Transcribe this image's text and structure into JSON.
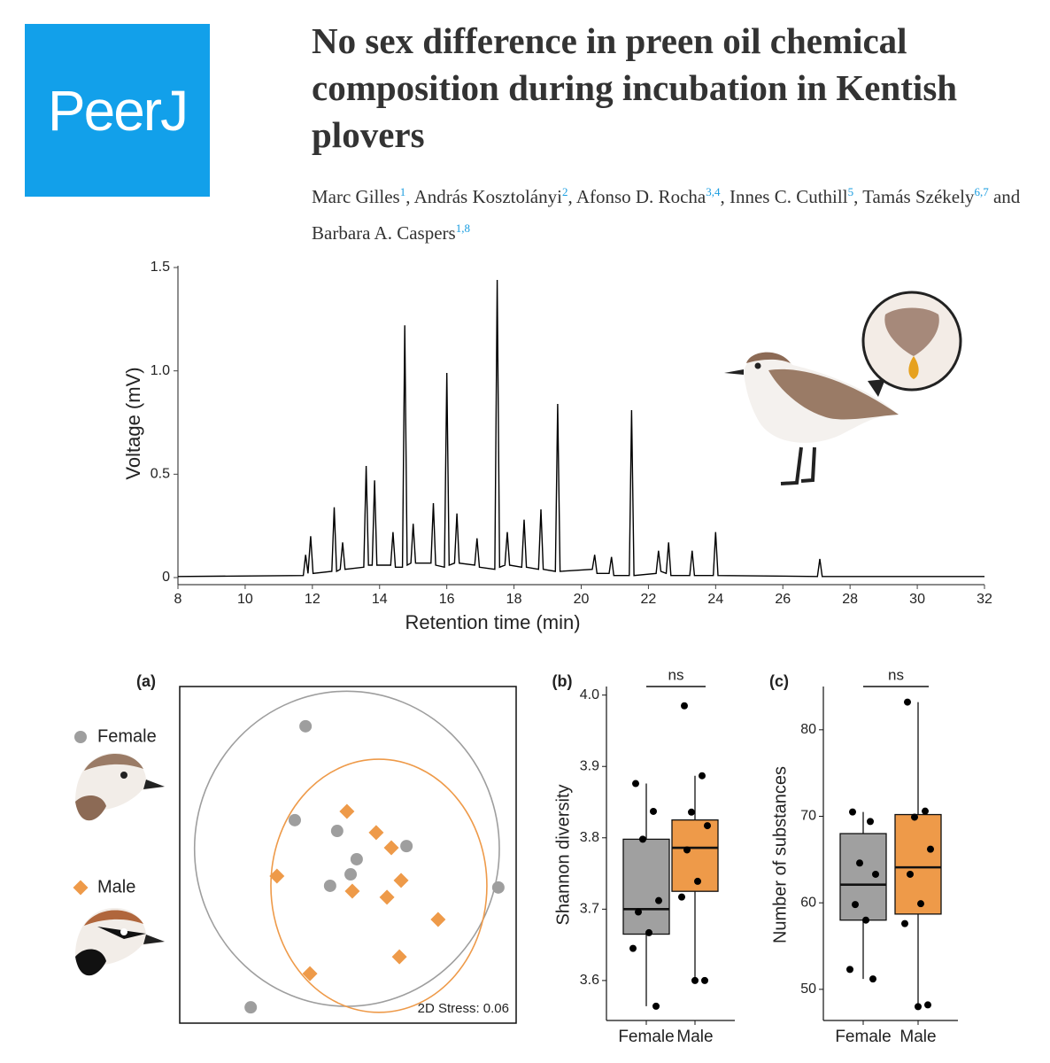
{
  "logo": "PeerJ",
  "title": "No sex difference in preen oil chemical composition during incubation in Kentish plovers",
  "authors": [
    {
      "name": "Marc Gilles",
      "aff": "1"
    },
    {
      "name": "András Kosztolányi",
      "aff": "2"
    },
    {
      "name": "Afonso D. Rocha",
      "aff": "3,4"
    },
    {
      "name": "Innes C. Cuthill",
      "aff": "5"
    },
    {
      "name": "Tamás Székely",
      "aff": "6,7"
    },
    {
      "name": "Barbara A. Caspers",
      "aff": "1,8"
    }
  ],
  "author_separator": ",",
  "author_conjunction": "and",
  "chart_data": [
    {
      "type": "line",
      "xlabel": "Retention time (min)",
      "ylabel": "Voltage (mV)",
      "color": "#000000",
      "xlim": [
        8,
        32
      ],
      "ylim": [
        0,
        1.5
      ],
      "xticks": [
        8,
        10,
        12,
        14,
        16,
        18,
        20,
        22,
        24,
        26,
        28,
        30,
        32
      ],
      "yticks": [
        0,
        0.5,
        {
          "value": 1,
          "label": "1.0"
        },
        {
          "value": 1.5,
          "label": "1.5"
        }
      ],
      "x": [
        8,
        11.73,
        11.8,
        11.87,
        11.95,
        12.02,
        12.58,
        12.65,
        12.72,
        12.83,
        12.9,
        12.97,
        13.53,
        13.6,
        13.67,
        13.78,
        13.85,
        13.92,
        14.33,
        14.4,
        14.47,
        14.68,
        14.75,
        14.82,
        14.93,
        15.0,
        15.07,
        15.53,
        15.6,
        15.67,
        15.93,
        16.0,
        16.07,
        16.23,
        16.3,
        16.37,
        16.83,
        16.9,
        16.97,
        17.43,
        17.5,
        17.57,
        17.73,
        17.8,
        17.87,
        18.23,
        18.3,
        18.37,
        18.73,
        18.8,
        18.87,
        19.23,
        19.3,
        19.37,
        20.33,
        20.4,
        20.47,
        20.83,
        20.9,
        20.97,
        21.43,
        21.5,
        21.57,
        22.23,
        22.3,
        22.37,
        22.53,
        22.6,
        22.67,
        23.23,
        23.3,
        23.37,
        23.93,
        24.0,
        24.07,
        27.03,
        27.1,
        27.17,
        32
      ],
      "values": [
        0.005,
        0.01,
        0.11,
        0.02,
        0.2,
        0.02,
        0.03,
        0.34,
        0.03,
        0.04,
        0.17,
        0.04,
        0.05,
        0.54,
        0.06,
        0.06,
        0.47,
        0.06,
        0.06,
        0.22,
        0.05,
        0.05,
        1.22,
        0.06,
        0.07,
        0.26,
        0.07,
        0.07,
        0.36,
        0.06,
        0.05,
        0.99,
        0.06,
        0.07,
        0.31,
        0.07,
        0.06,
        0.19,
        0.05,
        0.04,
        1.44,
        0.05,
        0.06,
        0.22,
        0.06,
        0.05,
        0.28,
        0.05,
        0.04,
        0.33,
        0.04,
        0.03,
        0.84,
        0.03,
        0.04,
        0.11,
        0.02,
        0.02,
        0.1,
        0.01,
        0.01,
        0.81,
        0.01,
        0.02,
        0.13,
        0.03,
        0.02,
        0.17,
        0.01,
        0.01,
        0.13,
        0.01,
        0.01,
        0.22,
        0.01,
        0.005,
        0.09,
        0.005,
        0.005
      ]
    },
    {
      "type": "scatter",
      "panel": "(a)",
      "annotation": "2D Stress: 0.06",
      "xlim": [
        0,
        1
      ],
      "ylim": [
        0,
        1
      ],
      "series": [
        {
          "name": "Female",
          "color": "#9e9e9e",
          "marker": "circle",
          "x": [
            0.374,
            0.342,
            0.468,
            0.674,
            0.526,
            0.508,
            0.447,
            0.947,
            0.211
          ],
          "values": [
            0.882,
            0.603,
            0.571,
            0.526,
            0.487,
            0.442,
            0.408,
            0.403,
            0.047
          ],
          "ellipse": {
            "cx": 0.497,
            "cy": 0.518,
            "rx": 0.453,
            "ry": 0.468
          }
        },
        {
          "name": "Male",
          "color": "#ee9a49",
          "marker": "diamond",
          "x": [
            0.497,
            0.584,
            0.629,
            0.289,
            0.658,
            0.513,
            0.616,
            0.768,
            0.653,
            0.387
          ],
          "values": [
            0.629,
            0.566,
            0.521,
            0.437,
            0.424,
            0.392,
            0.374,
            0.308,
            0.197,
            0.147
          ],
          "ellipse": {
            "cx": 0.592,
            "cy": 0.408,
            "rx": 0.321,
            "ry": 0.376
          }
        }
      ]
    },
    {
      "type": "box",
      "panel": "(b)",
      "annotation": "ns",
      "ylabel": "Shannon diversity",
      "categories": [
        "Female",
        "Male"
      ],
      "colors": [
        "#a0a0a0",
        "#ee9a49"
      ],
      "ylim": [
        3.544,
        4.012
      ],
      "yticks": [
        3.6,
        3.7,
        3.8,
        3.9,
        {
          "value": 4,
          "label": "4.0"
        }
      ],
      "boxes": [
        {
          "min": 3.564,
          "q1": 3.665,
          "median": 3.7,
          "q3": 3.798,
          "max": 3.876
        },
        {
          "min": 3.6,
          "q1": 3.725,
          "median": 3.786,
          "q3": 3.825,
          "max": 3.887
        }
      ],
      "points": [
        [
          3.876,
          3.837,
          3.798,
          3.712,
          3.696,
          3.667,
          3.645,
          3.564
        ],
        [
          3.985,
          3.887,
          3.836,
          3.817,
          3.783,
          3.739,
          3.717,
          3.6,
          3.6
        ]
      ]
    },
    {
      "type": "box",
      "panel": "(c)",
      "annotation": "ns",
      "ylabel": "Number of substances",
      "categories": [
        "Female",
        "Male"
      ],
      "colors": [
        "#a0a0a0",
        "#ee9a49"
      ],
      "ylim": [
        46.4,
        85
      ],
      "yticks": [
        50,
        60,
        70,
        80
      ],
      "boxes": [
        {
          "min": 51.2,
          "q1": 58,
          "median": 62.1,
          "q3": 68,
          "max": 70.5
        },
        {
          "min": 48,
          "q1": 58.7,
          "median": 64.1,
          "q3": 70.2,
          "max": 83.2
        }
      ],
      "points": [
        [
          70.5,
          69.4,
          64.6,
          63.3,
          59.8,
          58,
          52.3,
          51.2
        ],
        [
          83.2,
          70.6,
          69.9,
          66.2,
          63.3,
          59.9,
          57.6,
          48.2,
          48
        ]
      ]
    }
  ]
}
